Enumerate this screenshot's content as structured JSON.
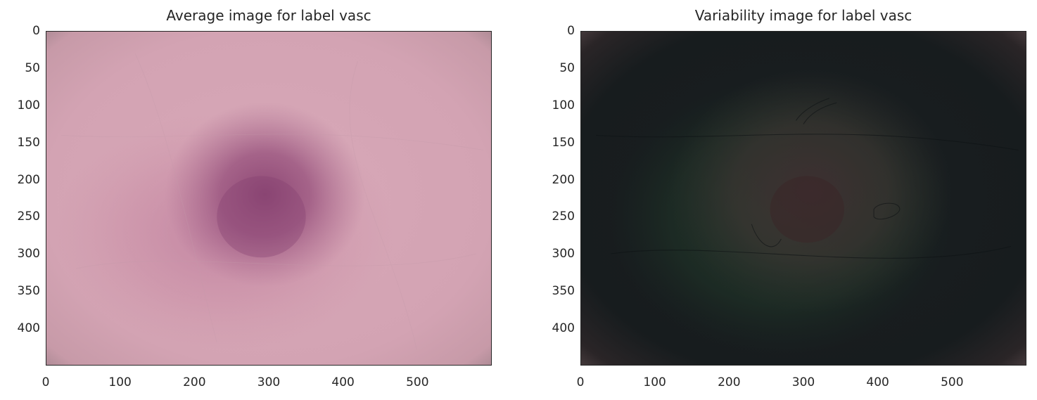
{
  "chart_data": [
    {
      "type": "image",
      "title": "Average image for label vasc",
      "xlim": [
        0,
        600
      ],
      "ylim": [
        450,
        0
      ],
      "x_ticks": [
        0,
        100,
        200,
        300,
        400,
        500
      ],
      "y_ticks": [
        0,
        50,
        100,
        150,
        200,
        250,
        300,
        350,
        400
      ],
      "grid": false,
      "colors": {
        "background": "#d4a2b3",
        "edge": "#b08e96",
        "lesion": "#8a4472"
      },
      "blob": {
        "center": [
          295,
          220
        ],
        "radius": [
          110,
          100
        ]
      }
    },
    {
      "type": "image",
      "title": "Variability image for label vasc",
      "xlim": [
        0,
        600
      ],
      "ylim": [
        450,
        0
      ],
      "x_ticks": [
        0,
        100,
        200,
        300,
        400,
        500
      ],
      "y_ticks": [
        0,
        50,
        100,
        150,
        200,
        250,
        300,
        350,
        400
      ],
      "grid": false,
      "colors": {
        "background": "#171c1e",
        "edge": "#3f3536",
        "lesion": "#3c2e30",
        "green_haze": "#1e3328"
      },
      "blob": {
        "center": [
          300,
          230
        ],
        "radius": [
          190,
          160
        ]
      }
    }
  ]
}
